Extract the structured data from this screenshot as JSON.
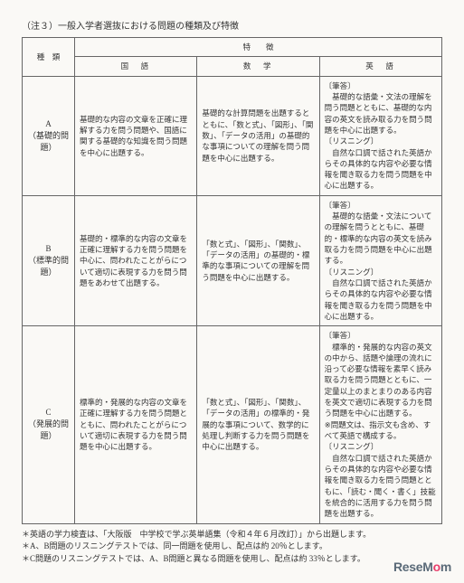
{
  "caption": "（注３）一般入学者選抜における問題の種類及び特徴",
  "headers": {
    "type": "種　類",
    "feature": "特　　徴",
    "kokugo": "国　語",
    "sugaku": "数　学",
    "eigo": "英　語"
  },
  "rows": {
    "A": {
      "label": "A\n（基礎的問題）",
      "kokugo": "基礎的な内容の文章を正確に理解する力を問う問題や、国語に関する基礎的な知識を問う問題を中心に出題する。",
      "sugaku": "基礎的な計算問題を出題するとともに、「数と式」、「図形」、「関数」、「データの活用」の基礎的な事項についての理解を問う問題を中心に出題する。",
      "eigo": "〔筆答〕\n　基礎的な語彙・文法の理解を問う問題とともに、基礎的な内容の英文を読み取る力を問う問題を中心に出題する。\n〔リスニング〕\n　自然な口調で話された英語からその具体的な内容や必要な情報を聞き取る力を問う問題を中心に出題する。"
    },
    "B": {
      "label": "B\n（標準的問題）",
      "kokugo": "基礎的・標準的な内容の文章を正確に理解する力を問う問題を中心に、問われたことがらについて適切に表現する力を問う問題をあわせて出題する。",
      "sugaku": "「数と式」、「図形」、「関数」、「データの活用」の基礎的・標準的な事項についての理解を問う問題を中心に出題する。",
      "eigo": "〔筆答〕\n　基礎的な語彙・文法についての理解を問うとともに、基礎的・標準的な内容の英文を読み取る力を問う問題を中心に出題する。\n〔リスニング〕\n　自然な口調で話された英語からその具体的な内容や必要な情報を聞き取る力を問う問題を中心に出題する。"
    },
    "C": {
      "label": "C\n（発展的問題）",
      "kokugo": "標準的・発展的な内容の文章を正確に理解する力を問う問題とともに、問われたことがらについて適切に表現する力を問う問題を中心に出題する。",
      "sugaku": "「数と式」、「図形」、「関数」、「データの活用」の標準的・発展的な事項について、数学的に処理し判断する力を問う問題を中心に出題する。",
      "eigo": "〔筆答〕\n　標準的・発展的な内容の英文の中から、話題や論理の流れに沿って必要な情報を素早く読み取る力を問う問題とともに、一定量以上のまとまりのある内容を英文で適切に表現する力を問う問題を中心に出題する。\n※問題文は、指示文も含め、すべて英語で構成する。\n〔リスニング〕\n　自然な口調で話された英語からその具体的な内容や必要な情報を聞き取る力を問う問題とともに、「読む・聞く・書く」技能を統合的に活用する力を問う問題を出題する。"
    }
  },
  "notes": [
    "＊英語の学力検査は、「大阪版　中学校で学ぶ英単語集（令和４年６月改訂）」から出題します。",
    "＊A、B問題のリスニングテストでは、同一問題を使用し、配点は約 20％とします。",
    "＊C問題のリスニングテストでは、A、B問題と異なる問題を使用し、配点は約 33％とします。"
  ],
  "logo": {
    "prefix": "ReseM",
    "accent": "o",
    "suffix": "m"
  }
}
